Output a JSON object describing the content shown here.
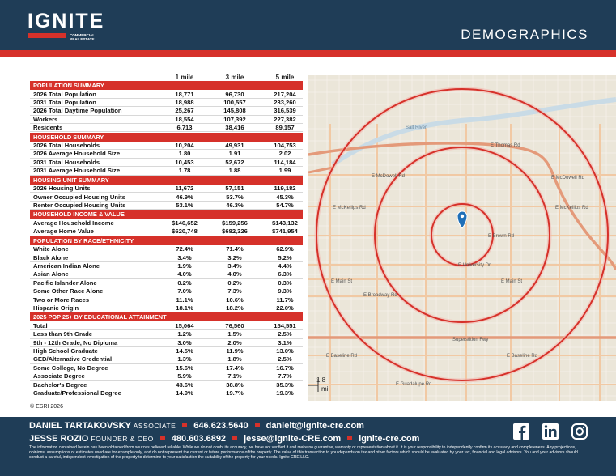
{
  "header": {
    "logo": "IGNITE",
    "logo_sub": [
      "COMMERCIAL",
      "REAL ESTATE"
    ],
    "title": "DEMOGRAPHICS"
  },
  "table": {
    "columns": [
      "1 mile",
      "3 mile",
      "5 mile"
    ],
    "sections": [
      {
        "title": "POPULATION SUMMARY",
        "rows": [
          [
            "2026 Total Population",
            "18,771",
            "96,730",
            "217,204"
          ],
          [
            "2031 Total Population",
            "18,988",
            "100,557",
            "233,260"
          ],
          [
            "2026 Total Daytime Population",
            "25,267",
            "145,808",
            "316,539"
          ],
          [
            "Workers",
            "18,554",
            "107,392",
            "227,382"
          ],
          [
            "Residents",
            "6,713",
            "38,416",
            "89,157"
          ]
        ]
      },
      {
        "title": "HOUSEHOLD SUMMARY",
        "rows": [
          [
            "2026 Total Households",
            "10,204",
            "49,931",
            "104,753"
          ],
          [
            "2026 Average Household Size",
            "1.80",
            "1.91",
            "2.02"
          ],
          [
            "2031 Total Households",
            "10,453",
            "52,672",
            "114,184"
          ],
          [
            "2031 Average Household Size",
            "1.78",
            "1.88",
            "1.99"
          ]
        ]
      },
      {
        "title": "HOUSING UNIT SUMMARY",
        "rows": [
          [
            "2026 Housing Units",
            "11,672",
            "57,151",
            "119,182"
          ],
          [
            "Owner Occupied Housing Units",
            "46.9%",
            "53.7%",
            "45.3%"
          ],
          [
            "Renter Occupied Housing Units",
            "53.1%",
            "46.3%",
            "54.7%"
          ]
        ]
      },
      {
        "title": "HOUSEHOLD INCOME & VALUE",
        "rows": [
          [
            "Average Household Income",
            "$146,652",
            "$159,256",
            "$143,132"
          ],
          [
            "Average Home Value",
            "$620,748",
            "$682,326",
            "$741,954"
          ]
        ]
      },
      {
        "title": "POPULATION BY RACE/ETHNICITY",
        "rows": [
          [
            "White Alone",
            "72.4%",
            "71.4%",
            "62.9%"
          ],
          [
            "Black Alone",
            "3.4%",
            "3.2%",
            "5.2%"
          ],
          [
            "American Indian Alone",
            "1.9%",
            "3.4%",
            "4.4%"
          ],
          [
            "Asian Alone",
            "4.0%",
            "4.0%",
            "6.3%"
          ],
          [
            "Pacific Islander Alone",
            "0.2%",
            "0.2%",
            "0.3%"
          ],
          [
            "Some Other Race Alone",
            "7.0%",
            "7.3%",
            "9.3%"
          ],
          [
            "Two or More Races",
            "11.1%",
            "10.6%",
            "11.7%"
          ],
          [
            "Hispanic Origin",
            "18.1%",
            "18.2%",
            "22.0%"
          ]
        ]
      },
      {
        "title": "2025 POP 25+ BY EDUCATIONAL ATTAINMENT",
        "rows": [
          [
            "Total",
            "15,064",
            "76,560",
            "154,551"
          ],
          [
            "Less than 9th Grade",
            "1.2%",
            "1.5%",
            "2.5%"
          ],
          [
            "9th - 12th Grade, No Diploma",
            "3.0%",
            "2.0%",
            "3.1%"
          ],
          [
            "High School Graduate",
            "14.5%",
            "11.9%",
            "13.0%"
          ],
          [
            "GED/Alternative Credential",
            "1.3%",
            "1.8%",
            "2.5%"
          ],
          [
            "Some College, No Degree",
            "15.6%",
            "17.4%",
            "16.7%"
          ],
          [
            "Associate Degree",
            "5.9%",
            "7.1%",
            "7.7%"
          ],
          [
            "Bachelor's Degree",
            "43.6%",
            "38.8%",
            "35.3%"
          ],
          [
            "Graduate/Professional Degree",
            "14.9%",
            "19.7%",
            "19.3%"
          ]
        ]
      }
    ],
    "source": "© ESRI 2026"
  },
  "map": {
    "labels": [
      "Salt River",
      "E Thomas Rd",
      "E McDowell Rd",
      "E McDowell Rd",
      "E McKellips Rd",
      "E McKellips Rd",
      "E Brown Rd",
      "E University Dr",
      "E Main St",
      "E Main St",
      "E Broadway Rd",
      "Superstition Fwy",
      "E Baseline Rd",
      "E Baseline Rd",
      "E Guadalupe Rd"
    ],
    "scale": [
      "1.8",
      "mi"
    ]
  },
  "footer": {
    "contacts": [
      {
        "name": "DANIEL TARTAKOVSKY",
        "role": "ASSOCIATE",
        "phone": "646.623.5640",
        "email": "danielt@ignite-cre.com"
      },
      {
        "name": "JESSE ROZIO",
        "role": "FOUNDER & CEO",
        "phone": "480.603.6892",
        "email": "jesse@ignite-CRE.com",
        "website": "ignite-cre.com"
      }
    ],
    "disclaimer": "The information contained herein has been obtained from sources believed reliable. While we do not doubt its accuracy, we have not verified it and make no guarantee, warranty or representation about it. It is your responsibility to independently confirm its accuracy and completeness. Any projections, opinions, assumptions or estimates used are for example only, and do not represent the current or future performance of the property. The value of this transaction to you depends on tax and other factors which should be evaluated by your tax, financial and legal advisors. You and your advisors should conduct a careful, independent investigation of the property to determine to your satisfaction the suitability of the property for your needs. Ignite CRE LLC."
  }
}
